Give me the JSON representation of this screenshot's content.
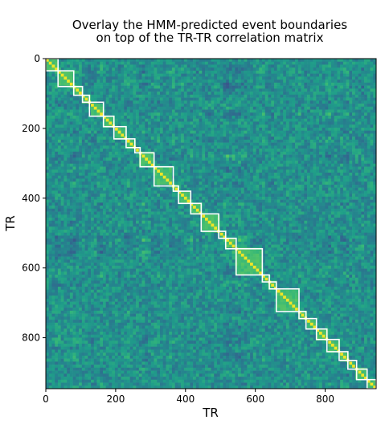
{
  "chart_data": {
    "type": "heatmap",
    "title_lines": [
      "Overlay the HMM-predicted event boundaries",
      "on top of the TR-TR correlation matrix"
    ],
    "xlabel": "TR",
    "ylabel": "TR",
    "n_tr": 946,
    "xlim": [
      0,
      946
    ],
    "ylim": [
      946,
      0
    ],
    "x_ticks": [
      0,
      200,
      400,
      600,
      800
    ],
    "y_ticks": [
      0,
      200,
      400,
      600,
      800
    ],
    "colormap": "viridis",
    "grid": false,
    "legend": "none",
    "boundary_color": "#ffffff",
    "event_boundaries": [
      {
        "start": 0,
        "end": 35
      },
      {
        "start": 35,
        "end": 80
      },
      {
        "start": 80,
        "end": 105
      },
      {
        "start": 105,
        "end": 125
      },
      {
        "start": 125,
        "end": 165
      },
      {
        "start": 165,
        "end": 195
      },
      {
        "start": 195,
        "end": 230
      },
      {
        "start": 230,
        "end": 255
      },
      {
        "start": 255,
        "end": 270
      },
      {
        "start": 270,
        "end": 310
      },
      {
        "start": 310,
        "end": 365
      },
      {
        "start": 365,
        "end": 380
      },
      {
        "start": 380,
        "end": 415
      },
      {
        "start": 415,
        "end": 445
      },
      {
        "start": 445,
        "end": 495
      },
      {
        "start": 495,
        "end": 515
      },
      {
        "start": 515,
        "end": 545
      },
      {
        "start": 545,
        "end": 620
      },
      {
        "start": 620,
        "end": 640
      },
      {
        "start": 640,
        "end": 660
      },
      {
        "start": 660,
        "end": 725
      },
      {
        "start": 725,
        "end": 745
      },
      {
        "start": 745,
        "end": 775
      },
      {
        "start": 775,
        "end": 805
      },
      {
        "start": 805,
        "end": 840
      },
      {
        "start": 840,
        "end": 865
      },
      {
        "start": 865,
        "end": 890
      },
      {
        "start": 890,
        "end": 920
      },
      {
        "start": 920,
        "end": 946
      }
    ]
  }
}
